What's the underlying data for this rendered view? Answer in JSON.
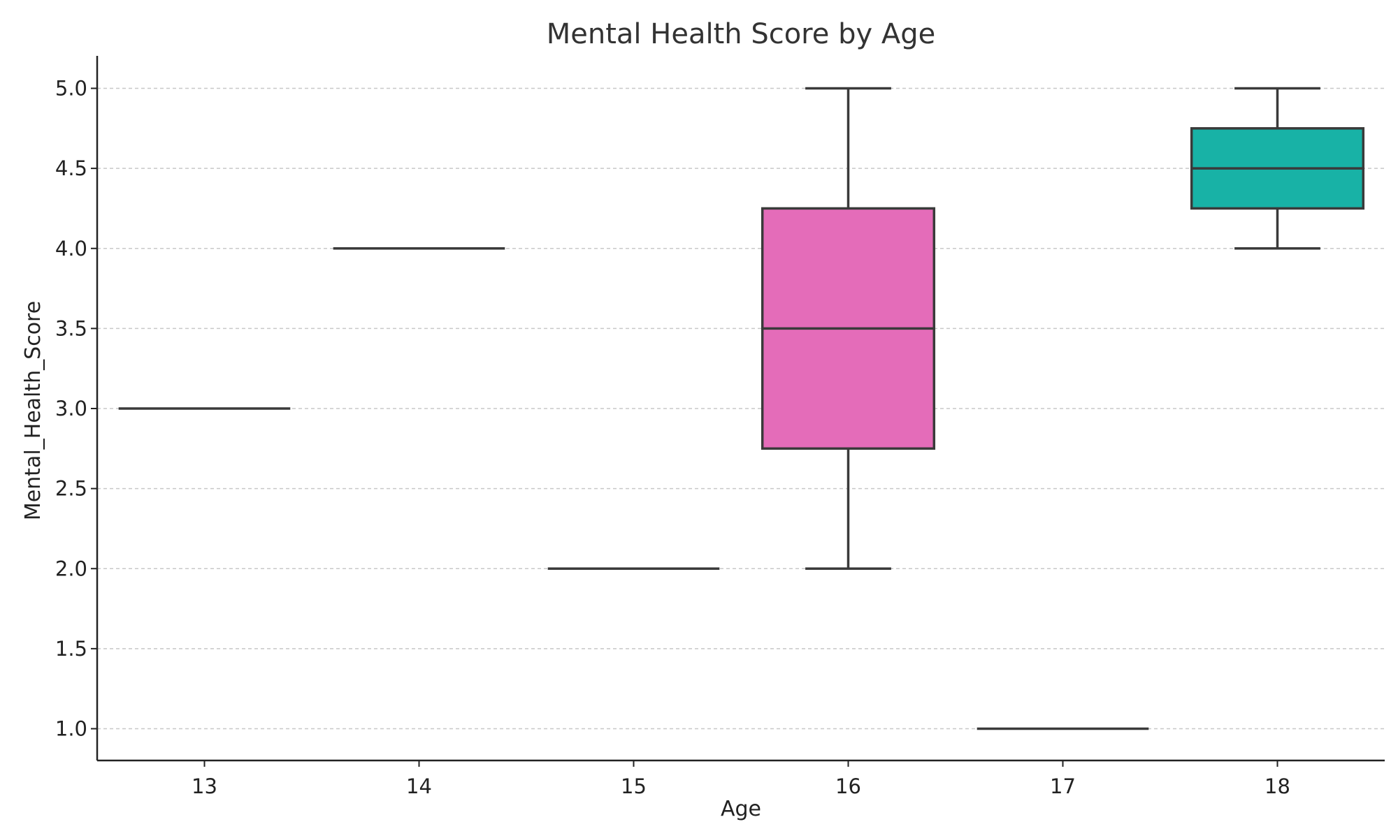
{
  "chart_data": {
    "type": "box",
    "title": "Mental Health Score by Age",
    "xlabel": "Age",
    "ylabel": "Mental_Health_Score",
    "ylim": [
      0.8,
      5.2
    ],
    "yticks": [
      "1.0",
      "1.5",
      "2.0",
      "2.5",
      "3.0",
      "3.5",
      "4.0",
      "4.5",
      "5.0"
    ],
    "grid": "horizontal dashed",
    "categories": [
      "13",
      "14",
      "15",
      "16",
      "17",
      "18"
    ],
    "boxes": [
      {
        "category": "13",
        "min": 3.0,
        "q1": 3.0,
        "median": 3.0,
        "q3": 3.0,
        "max": 3.0,
        "color": "#999999"
      },
      {
        "category": "14",
        "min": 4.0,
        "q1": 4.0,
        "median": 4.0,
        "q3": 4.0,
        "max": 4.0,
        "color": "#999999"
      },
      {
        "category": "15",
        "min": 2.0,
        "q1": 2.0,
        "median": 2.0,
        "q3": 2.0,
        "max": 2.0,
        "color": "#999999"
      },
      {
        "category": "16",
        "min": 2.0,
        "q1": 2.75,
        "median": 3.5,
        "q3": 4.25,
        "max": 5.0,
        "color": "#e46cb9"
      },
      {
        "category": "17",
        "min": 1.0,
        "q1": 1.0,
        "median": 1.0,
        "q3": 1.0,
        "max": 1.0,
        "color": "#999999"
      },
      {
        "category": "18",
        "min": 4.0,
        "q1": 4.25,
        "median": 4.5,
        "q3": 4.75,
        "max": 5.0,
        "color": "#18b2a6"
      }
    ]
  }
}
